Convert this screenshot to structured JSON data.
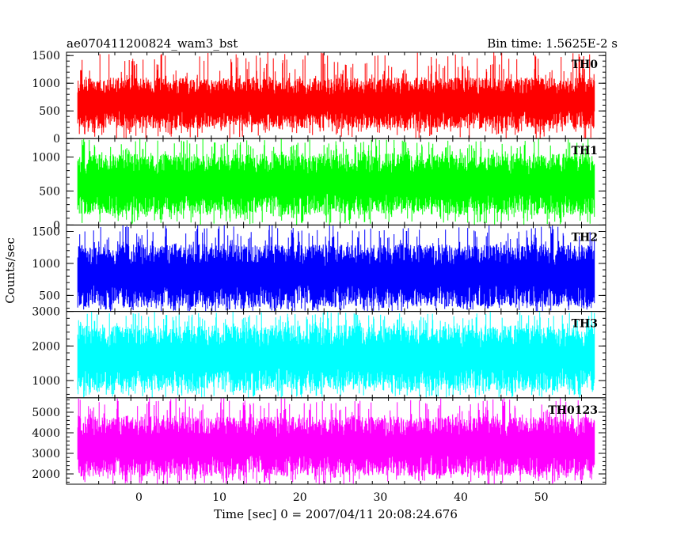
{
  "header": {
    "title": "ae070411200824_wam3_bst",
    "bin_time": "Bin time: 1.5625E-2 s"
  },
  "axes": {
    "ylabel": "Counts/sec",
    "xlabel": "Time [sec] 0 = 2007/04/11 20:08:24.676"
  },
  "chart_data": {
    "type": "line",
    "title": "ae070411200824_wam3_bst",
    "xlabel": "Time [sec] 0 = 2007/04/11 20:08:24.676",
    "ylabel": "Counts/sec",
    "xlim": [
      -9,
      58
    ],
    "x_data_range": [
      -7.6,
      56.6
    ],
    "x_ticks": [
      0,
      10,
      20,
      30,
      40,
      50
    ],
    "bin_time": 0.015625,
    "grid": false,
    "panels": [
      {
        "name": "TH0",
        "color": "#ff0000",
        "ylim": [
          0,
          1560
        ],
        "y_ticks": [
          0,
          500,
          1000,
          1500
        ],
        "typical_low": 180,
        "typical_high": 1100,
        "min": 0,
        "max": 1560
      },
      {
        "name": "TH1",
        "color": "#00ff00",
        "ylim": [
          0,
          1270
        ],
        "y_ticks": [
          0,
          500,
          1000
        ],
        "typical_low": 150,
        "typical_high": 1050,
        "min": 0,
        "max": 1270
      },
      {
        "name": "TH2",
        "color": "#0000ff",
        "ylim": [
          250,
          1600
        ],
        "y_ticks": [
          500,
          1000,
          1500
        ],
        "typical_low": 320,
        "typical_high": 1300,
        "min": 250,
        "max": 1600
      },
      {
        "name": "TH3",
        "color": "#00ffff",
        "ylim": [
          500,
          3000
        ],
        "y_ticks": [
          1000,
          2000,
          3000
        ],
        "typical_low": 700,
        "typical_high": 2600,
        "min": 500,
        "max": 3000
      },
      {
        "name": "TH0123",
        "color": "#ff00ff",
        "ylim": [
          1500,
          5700
        ],
        "y_ticks": [
          2000,
          3000,
          4000,
          5000
        ],
        "typical_low": 1900,
        "typical_high": 4800,
        "min": 1500,
        "max": 5700
      }
    ]
  }
}
